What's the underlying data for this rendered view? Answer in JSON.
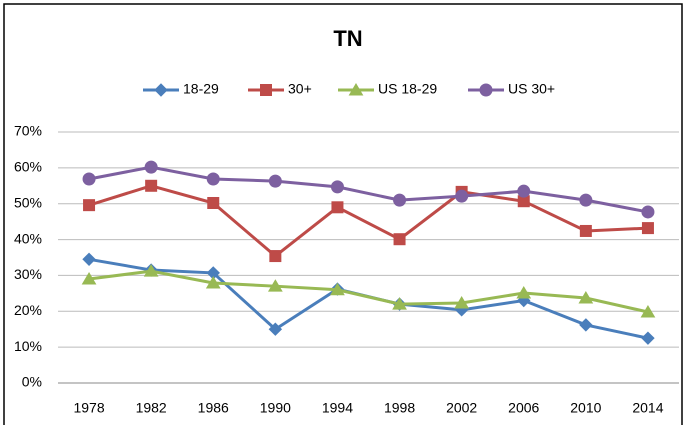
{
  "chart_data": {
    "type": "line",
    "title": "TN",
    "categories": [
      "1978",
      "1982",
      "1986",
      "1990",
      "1994",
      "1998",
      "2002",
      "2006",
      "2010",
      "2014"
    ],
    "series": [
      {
        "name": "18-29",
        "color": "#4a7ebb",
        "marker": "diamond",
        "values": [
          34.5,
          31.5,
          30.7,
          15,
          26.2,
          22,
          20.4,
          23,
          16.2,
          12.5
        ]
      },
      {
        "name": "30+",
        "color": "#be4b48",
        "marker": "square",
        "values": [
          49.6,
          55,
          50.2,
          35.4,
          49,
          40.1,
          53.3,
          50.7,
          42.4,
          43.2
        ]
      },
      {
        "name": "US 18-29",
        "color": "#98b954",
        "marker": "triangle",
        "values": [
          29,
          31.2,
          27.9,
          27,
          26,
          22,
          22.3,
          25.1,
          23.7,
          19.8
        ]
      },
      {
        "name": "US 30+",
        "color": "#7d60a0",
        "marker": "circle",
        "values": [
          56.9,
          60.2,
          56.9,
          56.3,
          54.7,
          51,
          52.1,
          53.5,
          51,
          47.7
        ]
      }
    ],
    "ylim": [
      0,
      70
    ],
    "yticks": [
      {
        "value": 0,
        "label": "0%"
      },
      {
        "value": 10,
        "label": "10%"
      },
      {
        "value": 20,
        "label": "20%"
      },
      {
        "value": 30,
        "label": "30%"
      },
      {
        "value": 40,
        "label": "40%"
      },
      {
        "value": 50,
        "label": "50%"
      },
      {
        "value": 60,
        "label": "60%"
      },
      {
        "value": 70,
        "label": "70%"
      }
    ],
    "grid": true,
    "legend": "top"
  }
}
